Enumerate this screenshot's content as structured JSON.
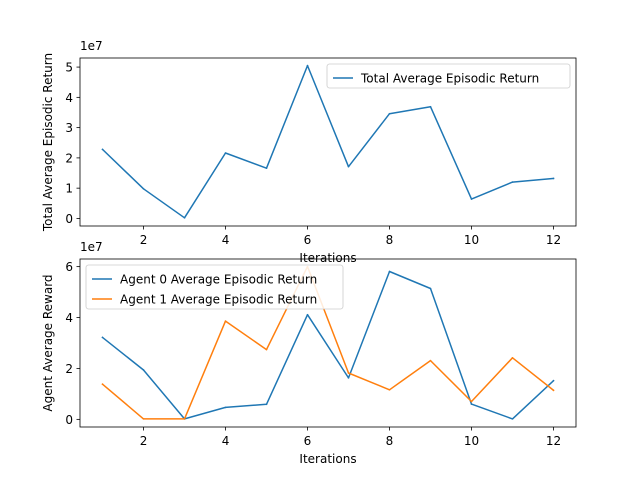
{
  "chart_data": [
    {
      "type": "line",
      "title": "",
      "xlabel": "Iterations",
      "ylabel": "Total Average Episodic Return",
      "offset_label": "1e7",
      "x": [
        1,
        2,
        3,
        4,
        5,
        6,
        7,
        8,
        9,
        10,
        11,
        12
      ],
      "xticks": [
        2,
        4,
        6,
        8,
        10,
        12
      ],
      "yticks": [
        0,
        1,
        2,
        3,
        4,
        5
      ],
      "xlim": [
        0.45,
        12.55
      ],
      "ylim": [
        -0.25,
        5.3
      ],
      "grid": false,
      "legend_position": "upper right",
      "series": [
        {
          "name": "Total Average Episodic Return",
          "color": "#1f77b4",
          "values": [
            2.28,
            0.98,
            0.02,
            2.16,
            1.66,
            5.05,
            1.71,
            3.46,
            3.69,
            0.64,
            1.2,
            1.32
          ]
        }
      ]
    },
    {
      "type": "line",
      "title": "",
      "xlabel": "Iterations",
      "ylabel": "Agent Average Reward",
      "offset_label": "1e7",
      "x": [
        1,
        2,
        3,
        4,
        5,
        6,
        7,
        8,
        9,
        10,
        11,
        12
      ],
      "xticks": [
        2,
        4,
        6,
        8,
        10,
        12
      ],
      "yticks": [
        0,
        2,
        4,
        6
      ],
      "xlim": [
        0.45,
        12.55
      ],
      "ylim": [
        -0.3,
        6.3
      ],
      "grid": false,
      "legend_position": "upper left",
      "series": [
        {
          "name": "Agent 0 Average Episodic Return",
          "color": "#1f77b4",
          "values": [
            3.22,
            1.94,
            0.02,
            0.47,
            0.59,
            4.11,
            1.63,
            5.81,
            5.14,
            0.6,
            0.02,
            1.52
          ]
        },
        {
          "name": "Agent 1 Average Episodic Return",
          "color": "#ff7f0e",
          "values": [
            1.38,
            0.02,
            0.02,
            3.86,
            2.74,
            6.0,
            1.82,
            1.16,
            2.31,
            0.7,
            2.42,
            1.14
          ]
        }
      ]
    }
  ]
}
